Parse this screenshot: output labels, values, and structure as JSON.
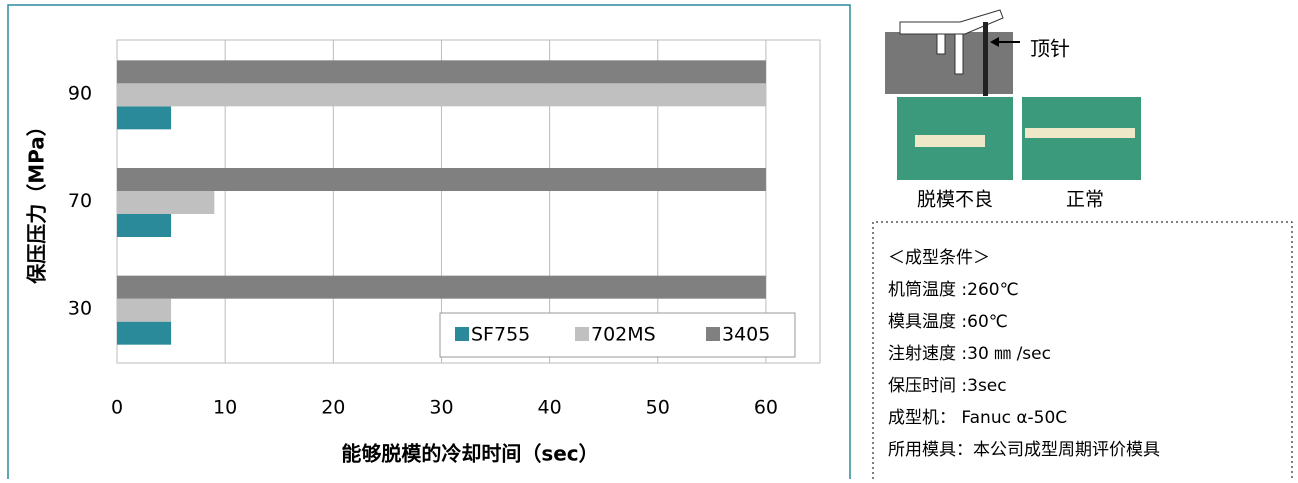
{
  "chart_data": {
    "type": "bar",
    "orientation": "horizontal",
    "y_label": "保压压力（MPa）",
    "x_label": "能够脱模的冷却时间（sec）",
    "categories": [
      "30",
      "70",
      "90"
    ],
    "series": [
      {
        "name": "SF755",
        "color": "#2a8a9a",
        "values": [
          5,
          5,
          5
        ]
      },
      {
        "name": "702MS",
        "color": "#c0c0c0",
        "values": [
          5,
          9,
          60
        ]
      },
      {
        "name": "3405",
        "color": "#808080",
        "values": [
          60,
          60,
          60
        ]
      }
    ],
    "xlim": [
      0,
      65
    ],
    "xticks": [
      0,
      10,
      20,
      30,
      40,
      50,
      60
    ],
    "grid": true,
    "legend": "lower right"
  },
  "figure": {
    "pin_label": "顶针",
    "captions": [
      "脱模不良",
      "正常"
    ]
  },
  "conditions": {
    "title": "＜成型条件＞",
    "lines": [
      "机筒温度 :260℃",
      "模具温度 :60℃",
      "注射速度 :30 ㎜ /sec",
      "保压时间 :3sec",
      "成型机： Fanuc α-50C",
      "所用模具：本公司成型周期评价模具"
    ]
  }
}
